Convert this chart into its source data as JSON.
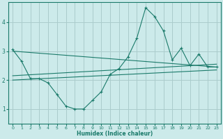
{
  "xlabel": "Humidex (Indice chaleur)",
  "background_color": "#cceaea",
  "grid_color": "#aacccc",
  "line_color": "#1a7a6a",
  "xlim": [
    -0.5,
    23.5
  ],
  "ylim": [
    0.5,
    4.7
  ],
  "yticks": [
    1,
    2,
    3,
    4
  ],
  "xticks": [
    0,
    1,
    2,
    3,
    4,
    5,
    6,
    7,
    8,
    9,
    10,
    11,
    12,
    13,
    14,
    15,
    16,
    17,
    18,
    19,
    20,
    21,
    22,
    23
  ],
  "main_x": [
    0,
    1,
    2,
    3,
    4,
    5,
    6,
    7,
    8,
    9,
    10,
    11,
    12,
    13,
    14,
    15,
    16,
    17,
    18,
    19,
    20,
    21,
    22,
    23
  ],
  "main_y": [
    3.05,
    2.65,
    2.05,
    2.05,
    1.9,
    1.5,
    1.1,
    1.0,
    1.0,
    1.3,
    1.6,
    2.2,
    2.4,
    2.8,
    3.45,
    4.5,
    4.2,
    3.7,
    2.7,
    3.1,
    2.5,
    2.9,
    2.45,
    2.45
  ],
  "trend1_x": [
    0,
    23
  ],
  "trend1_y": [
    3.0,
    2.45
  ],
  "trend2_x": [
    0,
    23
  ],
  "trend2_y": [
    2.15,
    2.55
  ],
  "trend3_x": [
    0,
    23
  ],
  "trend3_y": [
    2.0,
    2.35
  ]
}
